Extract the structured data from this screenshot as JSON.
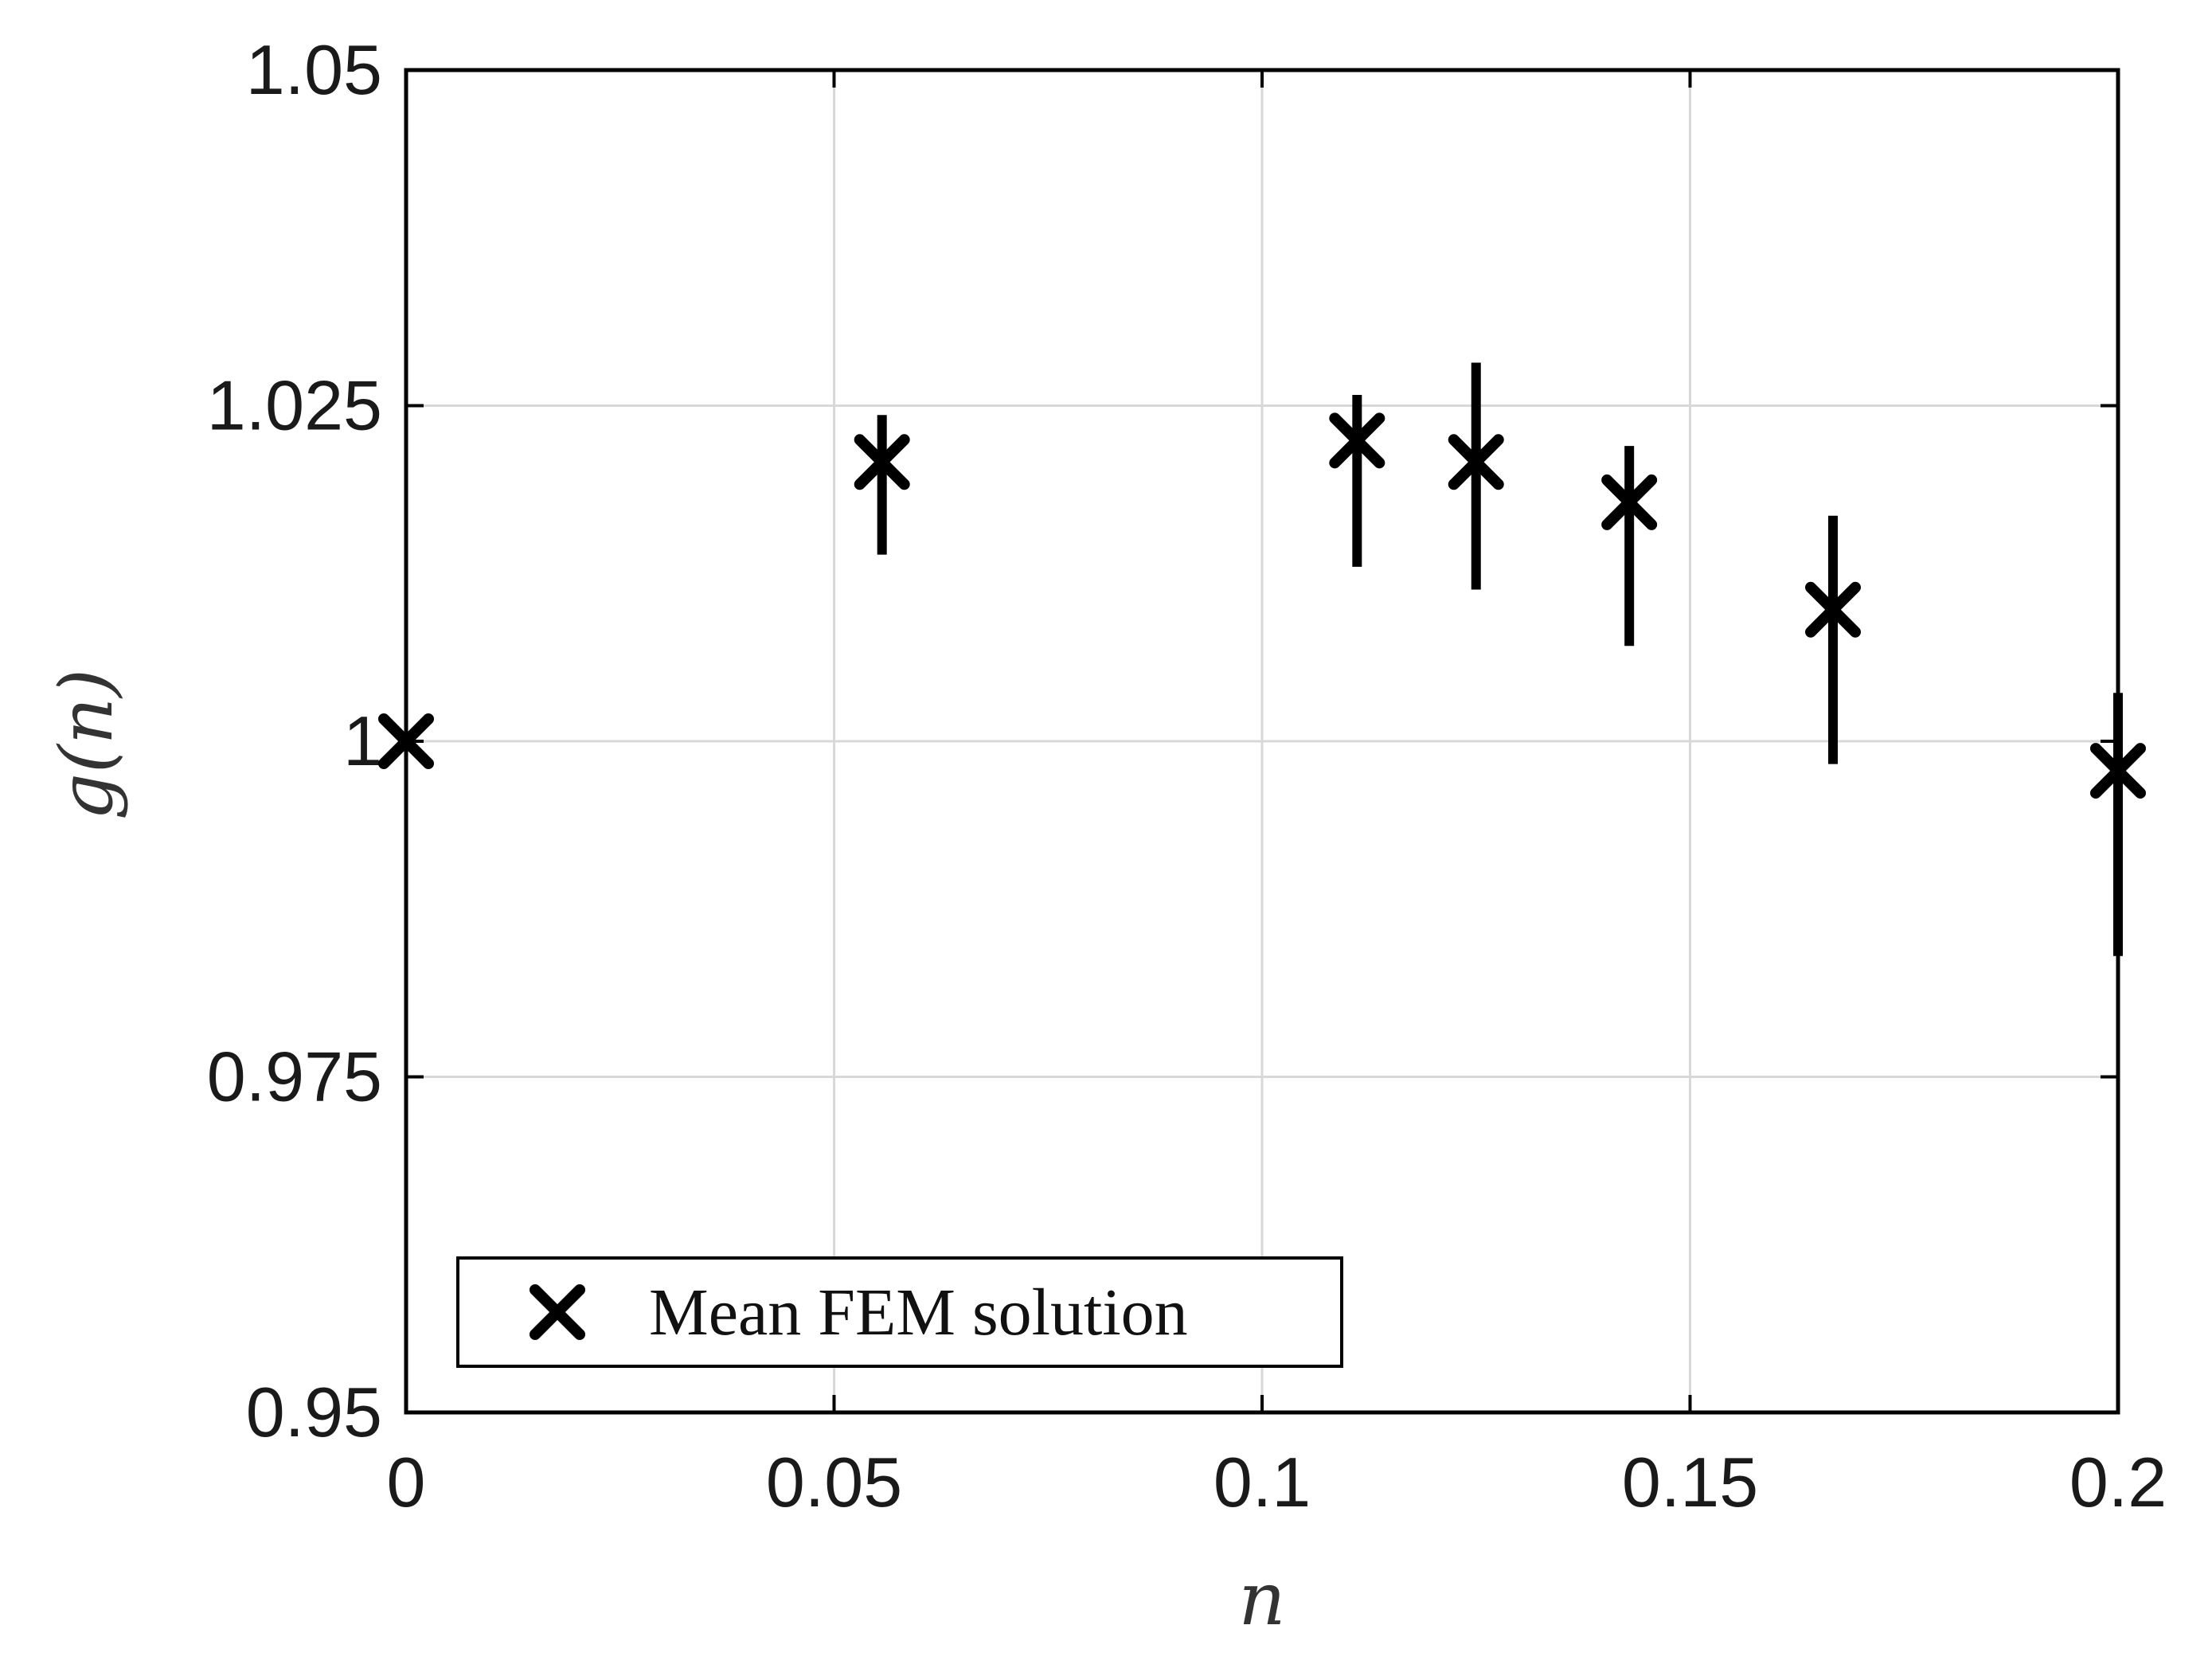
{
  "chart_data": {
    "type": "scatter",
    "title": "",
    "xlabel": "n",
    "ylabel": "g(n)",
    "xlim": [
      0,
      0.2
    ],
    "ylim": [
      0.95,
      1.05
    ],
    "xticks": [
      0,
      0.05,
      0.1,
      0.15,
      0.2
    ],
    "xtick_labels": [
      "0",
      "0.05",
      "0.1",
      "0.15",
      "0.2"
    ],
    "yticks": [
      0.95,
      0.975,
      1,
      1.025,
      1.05
    ],
    "ytick_labels": [
      "0.95",
      "0.975",
      "1",
      "1.025",
      "1.05"
    ],
    "grid": true,
    "legend_position": "bottom-left",
    "series": [
      {
        "name": "Mean FEM solution",
        "marker": "x",
        "color": "#000000",
        "x": [
          0,
          0.0556,
          0.1111,
          0.125,
          0.1429,
          0.1667,
          0.2
        ],
        "y": [
          1.0,
          1.0208,
          1.0224,
          1.0208,
          1.0178,
          1.0098,
          0.9978
        ],
        "err_low": [
          1.0,
          1.0139,
          1.013,
          1.0113,
          1.0071,
          0.9983,
          0.984
        ],
        "err_high": [
          1.0,
          1.0243,
          1.0258,
          1.0282,
          1.022,
          1.0168,
          1.0036
        ]
      }
    ]
  }
}
